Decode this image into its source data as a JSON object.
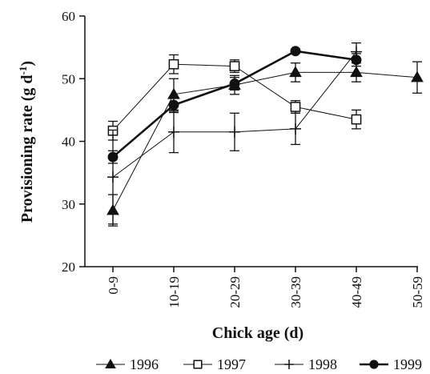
{
  "chart_data": {
    "type": "line",
    "title": "",
    "xlabel": "Chick age (d)",
    "ylabel": "Provisioning rate (g d",
    "ylabel_superscript": "-1",
    "ylabel_suffix": ")",
    "categories": [
      "0-9",
      "10-19",
      "20-29",
      "30-39",
      "40-49",
      "50-59"
    ],
    "ylim": [
      20,
      60
    ],
    "yticks": [
      20,
      30,
      40,
      50,
      60
    ],
    "grid": false,
    "legend_position": "bottom",
    "series": [
      {
        "name": "1996",
        "marker": "triangle-filled",
        "line": "thin",
        "values": [
          29,
          47.5,
          49,
          51,
          51,
          50.2
        ],
        "errors": [
          2.5,
          2.5,
          1.5,
          1.5,
          1.5,
          2.5
        ]
      },
      {
        "name": "1997",
        "marker": "square-open",
        "line": "thin",
        "values": [
          41.7,
          52.3,
          52,
          45.5,
          43.5,
          null
        ],
        "errors": [
          1.5,
          1.5,
          1,
          1,
          1.5,
          null
        ]
      },
      {
        "name": "1998",
        "marker": "plus",
        "line": "thin",
        "values": [
          34.3,
          41.5,
          41.5,
          42,
          54.3,
          null
        ],
        "errors": [
          7.5,
          3.3,
          3,
          2.5,
          1.4,
          null
        ]
      },
      {
        "name": "1999",
        "marker": "circle-filled",
        "line": "thick",
        "values": [
          37.5,
          45.8,
          49.2,
          54.4,
          53,
          null
        ],
        "errors": [
          1,
          1.2,
          1,
          0.3,
          1,
          null
        ]
      }
    ]
  }
}
